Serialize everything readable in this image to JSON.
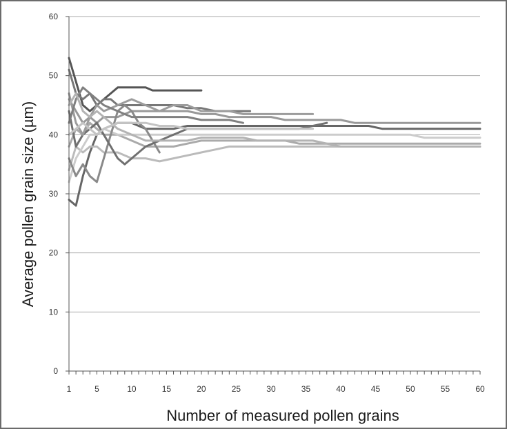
{
  "chart_data": {
    "type": "line",
    "title": "",
    "xlabel": "Number of measured pollen grains",
    "ylabel": "Average pollen grain size (µm)",
    "xlim": [
      1,
      60
    ],
    "ylim": [
      0,
      60
    ],
    "x_ticks": [
      1,
      5,
      10,
      15,
      20,
      25,
      30,
      35,
      40,
      45,
      50,
      55,
      60
    ],
    "y_ticks": [
      0,
      10,
      20,
      30,
      40,
      50,
      60
    ],
    "grid": "horizontal",
    "legend": "none",
    "series": [
      {
        "color": "#555555",
        "x": [
          1,
          2,
          3,
          4,
          5,
          6,
          7,
          8,
          9,
          10,
          11,
          12,
          13,
          14,
          15,
          16,
          17,
          18,
          19,
          20
        ],
        "values": [
          53,
          49,
          45,
          44,
          45,
          46,
          47,
          48,
          48,
          48,
          48,
          48,
          47.5,
          47.5,
          47.5,
          47.5,
          47.5,
          47.5,
          47.5,
          47.5
        ]
      },
      {
        "color": "#777777",
        "x": [
          1,
          2,
          3,
          4,
          5,
          6,
          7,
          8,
          9,
          10,
          12,
          14,
          16,
          18,
          20,
          22,
          24,
          26,
          27
        ],
        "values": [
          51,
          47,
          46,
          47,
          45,
          46,
          46,
          45,
          45,
          45,
          45,
          45,
          45,
          44.5,
          44.5,
          44,
          44,
          44,
          44
        ]
      },
      {
        "color": "#999999",
        "x": [
          1,
          2,
          3,
          4,
          5,
          6,
          8,
          10,
          12,
          14,
          16,
          18,
          20,
          22,
          24,
          26,
          28,
          30,
          32,
          34,
          36,
          38,
          40,
          42,
          44,
          46,
          48,
          50,
          52,
          54,
          56,
          58,
          60
        ],
        "values": [
          46,
          44,
          42,
          43,
          42,
          43,
          43,
          44,
          44,
          44,
          44,
          44,
          43.5,
          43.5,
          43,
          43,
          43,
          43,
          42.5,
          42.5,
          42.5,
          42.5,
          42.5,
          42,
          42,
          42,
          42,
          42,
          42,
          42,
          42,
          42,
          42
        ]
      },
      {
        "color": "#666666",
        "x": [
          1,
          2,
          3,
          4,
          5,
          6,
          8,
          10,
          12,
          14,
          16,
          18,
          20,
          22,
          24,
          26,
          28,
          30,
          32,
          34,
          36,
          38,
          40,
          42,
          44,
          46,
          48,
          50,
          52,
          54,
          56,
          58,
          60
        ],
        "values": [
          29,
          28,
          33,
          37,
          40,
          41,
          42,
          42,
          41,
          41,
          41,
          41.5,
          41.5,
          41.5,
          41.5,
          41.5,
          41.5,
          41.5,
          41.5,
          41.5,
          41.5,
          41.5,
          41.5,
          41.5,
          41.5,
          41,
          41,
          41,
          41,
          41,
          41,
          41,
          41
        ]
      },
      {
        "color": "#aaaaaa",
        "x": [
          1,
          2,
          3,
          4,
          5,
          6,
          8,
          10,
          12,
          14,
          16,
          18,
          20,
          22,
          24,
          26,
          28,
          30,
          32,
          34,
          36,
          38,
          40,
          42,
          44,
          46,
          48,
          50,
          52,
          54,
          56,
          58,
          60
        ],
        "values": [
          38,
          41,
          40,
          42,
          41,
          40,
          40,
          39,
          38,
          38,
          38,
          38.5,
          39,
          39,
          39,
          39,
          39,
          39,
          39,
          38.5,
          38.5,
          38.5,
          38.5,
          38.5,
          38.5,
          38.5,
          38.5,
          38.5,
          38.5,
          38.5,
          38.5,
          38.5,
          38.5
        ]
      },
      {
        "color": "#bbbbbb",
        "x": [
          1,
          2,
          3,
          4,
          5,
          6,
          8,
          10,
          12,
          14,
          16,
          18,
          20,
          22,
          24,
          26,
          28,
          30,
          32,
          34,
          36,
          38,
          40,
          42,
          44,
          46,
          48,
          50,
          52,
          54,
          56,
          58,
          60
        ],
        "values": [
          34,
          38,
          37,
          38,
          38,
          37,
          37,
          36,
          36,
          35.5,
          36,
          36.5,
          37,
          37.5,
          38,
          38,
          38,
          38,
          38,
          38,
          38,
          38,
          38,
          38,
          38,
          38,
          38,
          38,
          38,
          38,
          38,
          38,
          38
        ]
      },
      {
        "color": "#cccccc",
        "x": [
          1,
          2,
          3,
          4,
          5,
          6,
          8,
          10,
          12,
          14,
          16,
          18,
          20,
          22,
          24,
          26,
          28,
          30,
          32,
          34,
          36,
          38,
          40,
          42,
          44,
          46,
          48,
          50,
          52,
          54,
          56,
          58,
          60
        ],
        "values": [
          32,
          36,
          38,
          40,
          40,
          41,
          40,
          40,
          40,
          40,
          40,
          40,
          40,
          40,
          40,
          40,
          40,
          40,
          40,
          40,
          40,
          40,
          40,
          40,
          40,
          40,
          40,
          40,
          39.5,
          39.5,
          39.5,
          39.5,
          39.5
        ]
      },
      {
        "color": "#8a8a8a",
        "x": [
          1,
          2,
          3,
          4,
          5,
          6,
          7,
          8,
          9,
          10,
          11,
          12,
          13,
          14
        ],
        "values": [
          36,
          33,
          35,
          33,
          32,
          36,
          40,
          44,
          45,
          44,
          42,
          41,
          39,
          37
        ]
      },
      {
        "color": "#707070",
        "x": [
          1,
          2,
          3,
          4,
          5,
          6,
          7,
          8,
          9,
          10,
          12,
          14,
          16,
          18,
          20,
          22,
          24,
          26,
          28,
          30,
          32,
          34,
          36,
          38
        ],
        "values": [
          44,
          38,
          40,
          41,
          42,
          40,
          38,
          36,
          35,
          36,
          38,
          39,
          40,
          41,
          41,
          41,
          41,
          41,
          41,
          41,
          41,
          41,
          41.5,
          42
        ]
      },
      {
        "color": "#9c9c9c",
        "x": [
          1,
          2,
          3,
          4,
          5,
          6,
          8,
          10,
          12,
          14,
          16,
          18,
          20,
          22,
          24,
          26,
          28,
          30,
          32,
          34,
          36
        ],
        "values": [
          47,
          42,
          40,
          43,
          45,
          44,
          45,
          46,
          45,
          44,
          45,
          45,
          44,
          44,
          44,
          43.5,
          43.5,
          43.5,
          43.5,
          43.5,
          43.5
        ]
      },
      {
        "color": "#808080",
        "x": [
          1,
          2,
          3,
          4,
          5,
          6,
          8,
          10,
          12,
          14,
          16,
          18,
          20,
          22,
          24,
          26
        ],
        "values": [
          42,
          46,
          48,
          47,
          46,
          45,
          44,
          43,
          43,
          43,
          43,
          43,
          42.5,
          42.5,
          42.5,
          42
        ]
      },
      {
        "color": "#b3b3b3",
        "x": [
          1,
          2,
          3,
          4,
          5,
          6,
          8,
          10,
          12,
          14,
          16,
          18,
          20,
          22,
          24,
          26,
          28,
          30,
          32,
          34,
          36,
          38,
          40,
          42,
          44,
          46,
          48,
          50,
          52,
          54,
          56,
          58,
          60
        ],
        "values": [
          45,
          47,
          44,
          43,
          44,
          43,
          41,
          40,
          39,
          39,
          39,
          39,
          39.5,
          39.5,
          39.5,
          39.5,
          39,
          39,
          39,
          39,
          39,
          38.5,
          38,
          38,
          38,
          38,
          38,
          38,
          38,
          38,
          38,
          38,
          38
        ]
      },
      {
        "color": "#c4c4c4",
        "x": [
          1,
          2,
          3,
          4,
          5,
          6,
          8,
          10,
          12,
          14,
          16,
          18,
          20,
          22,
          24,
          26,
          28,
          30,
          32,
          34,
          36
        ],
        "values": [
          40,
          41,
          42,
          41,
          40,
          41,
          42,
          42,
          42,
          41.5,
          41.5,
          41,
          41,
          41,
          41,
          41,
          41,
          41,
          41,
          41,
          41
        ]
      }
    ]
  }
}
